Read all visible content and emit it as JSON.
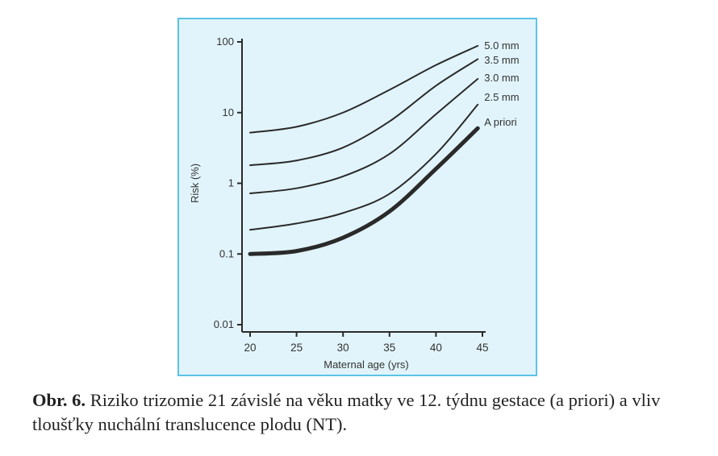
{
  "chart_data": {
    "type": "line",
    "title": "",
    "xlabel": "Maternal age (yrs)",
    "ylabel": "Risk (%)",
    "xlim": [
      20,
      45
    ],
    "ylim": [
      0.01,
      100
    ],
    "yscale": "log",
    "x_ticks": [
      "20",
      "25",
      "30",
      "35",
      "40",
      "45"
    ],
    "y_ticks": [
      "100",
      "10",
      "1",
      "0.1",
      "0.01"
    ],
    "x": [
      20,
      25,
      30,
      35,
      40,
      44.5
    ],
    "series": [
      {
        "name": "5.0 mm",
        "values": [
          5.2,
          6.3,
          10,
          21,
          47,
          88
        ]
      },
      {
        "name": "3.5 mm",
        "values": [
          1.8,
          2.1,
          3.2,
          7.5,
          24,
          57
        ]
      },
      {
        "name": "3.0 mm",
        "values": [
          0.72,
          0.85,
          1.25,
          2.6,
          9.5,
          30
        ]
      },
      {
        "name": "2.5 mm",
        "values": [
          0.22,
          0.27,
          0.38,
          0.71,
          2.6,
          13
        ]
      },
      {
        "name": "A priori",
        "values": [
          0.1,
          0.11,
          0.17,
          0.4,
          1.6,
          6
        ],
        "bold": true
      }
    ],
    "grid": false,
    "legend": "line-end labels"
  },
  "caption": {
    "label": "Obr. 6.",
    "text": " Riziko trizomie 21 závislé na věku matky ve 12. týdnu gestace (a priori) a vliv tloušťky nuchální translucence plodu (NT)."
  },
  "colors": {
    "panel_bg": "#e1f4fb",
    "panel_border": "#5bc3e6",
    "line": "#2a2a2a"
  }
}
